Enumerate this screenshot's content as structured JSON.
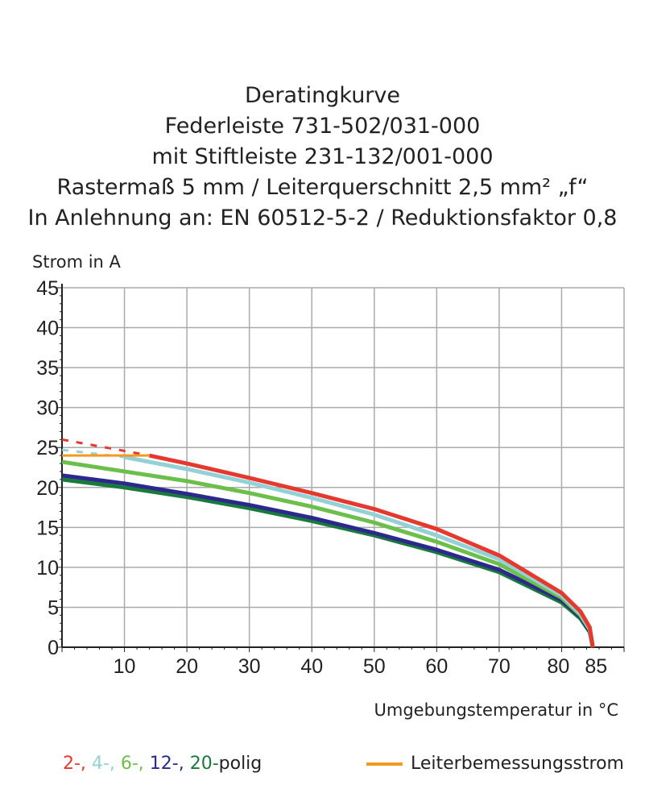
{
  "title_lines": [
    "Deratingkurve",
    "Federleiste 731-502/031-000",
    "mit Stiftleiste 231-132/001-000",
    "Rastermaß 5 mm / Leiterquerschnitt 2,5 mm² „f“",
    "In Anlehnung an: EN 60512-5-2 / Reduktionsfaktor 0,8"
  ],
  "chart_data": {
    "type": "line",
    "ylabel": "Strom in A",
    "xlabel": "Umgebungstemperatur in °C",
    "xlim": [
      0,
      90
    ],
    "ylim": [
      0,
      45
    ],
    "xticks": [
      10,
      20,
      30,
      40,
      50,
      60,
      70,
      80,
      85
    ],
    "yticks": [
      0,
      5,
      10,
      15,
      20,
      25,
      30,
      35,
      40,
      45
    ],
    "grid": true,
    "series": [
      {
        "color": "#e5392e",
        "x": [
          0,
          14,
          20,
          30,
          40,
          50,
          60,
          70,
          80,
          83,
          84.5,
          85
        ],
        "y": [
          26,
          24,
          23,
          21.2,
          19.3,
          17.3,
          14.8,
          11.5,
          6.8,
          4.5,
          2.5,
          0
        ],
        "dashed_until": 14
      },
      {
        "color": "#93d1d6",
        "x": [
          0,
          10,
          20,
          30,
          40,
          50,
          60,
          70,
          80,
          83,
          84.5,
          85
        ],
        "y": [
          24.7,
          23.8,
          22.3,
          20.6,
          18.7,
          16.6,
          14,
          11,
          6.5,
          4.2,
          2.3,
          0
        ],
        "dashed_until": 6
      },
      {
        "color": "#6dbf4b",
        "x": [
          0,
          10,
          20,
          30,
          40,
          50,
          60,
          70,
          80,
          83,
          84.5,
          85
        ],
        "y": [
          23.2,
          22,
          20.8,
          19.3,
          17.6,
          15.6,
          13.2,
          10.4,
          6.2,
          4,
          2.2,
          0
        ]
      },
      {
        "color": "#2b2a8c",
        "x": [
          0,
          10,
          20,
          30,
          40,
          50,
          60,
          70,
          80,
          83,
          84.5,
          85
        ],
        "y": [
          21.5,
          20.5,
          19.2,
          17.8,
          16.2,
          14.3,
          12.2,
          9.7,
          5.9,
          3.8,
          2,
          0
        ]
      },
      {
        "color": "#1a7a3c",
        "x": [
          0,
          10,
          20,
          30,
          40,
          50,
          60,
          70,
          80,
          83,
          84.5,
          85
        ],
        "y": [
          21,
          20,
          18.8,
          17.4,
          15.8,
          14,
          11.9,
          9.4,
          5.6,
          3.6,
          1.9,
          0
        ]
      }
    ],
    "rated_current": {
      "color": "#f39a1e",
      "x": [
        0,
        14
      ],
      "y": [
        24,
        24
      ],
      "label": "Leiterbemessungsstrom"
    },
    "legend": {
      "parts": [
        {
          "text": "2-,",
          "color": "#e5392e"
        },
        {
          "text": " 4-,",
          "color": "#93d1d6"
        },
        {
          "text": " 6-,",
          "color": "#6dbf4b"
        },
        {
          "text": " 12-,",
          "color": "#2b2a8c"
        },
        {
          "text": " 20-",
          "color": "#1a7a3c"
        },
        {
          "text": "polig",
          "color": "#222222"
        }
      ],
      "placement": "bottom"
    }
  }
}
